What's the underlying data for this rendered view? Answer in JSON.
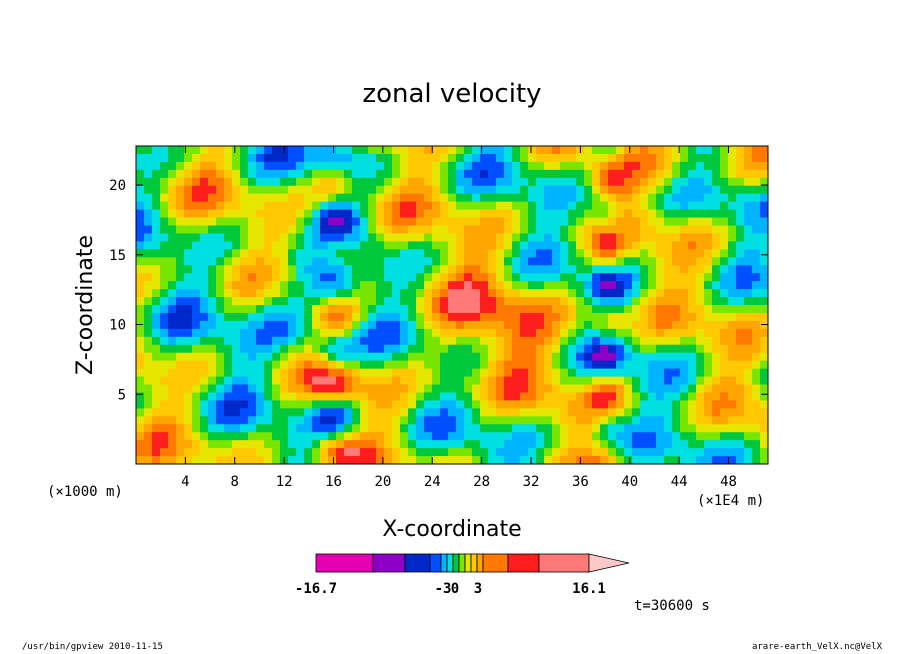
{
  "chart_data": {
    "type": "heatmap",
    "title": "zonal velocity",
    "xlabel": "X-coordinate",
    "ylabel": "Z-coordinate",
    "x_units_label": "(×1000 m)",
    "x_scale_label": "(×1E4 m)",
    "xlim": [
      0.0,
      51.2
    ],
    "ylim": [
      0.0,
      22.8
    ],
    "x_ticks": [
      4,
      8,
      12,
      16,
      20,
      24,
      28,
      32,
      36,
      40,
      44,
      48
    ],
    "y_ticks": [
      5,
      10,
      15,
      20
    ],
    "colorbar": {
      "min": -16.7,
      "max": 16.1,
      "tick_labels": [
        "-16.7",
        "-3",
        "0",
        "3",
        "16.1"
      ],
      "colors": [
        "#e600b4",
        "#8c00c8",
        "#0028c8",
        "#0050ff",
        "#00b4ff",
        "#00e0e0",
        "#00c83c",
        "#78e600",
        "#e6e600",
        "#ffc800",
        "#ffa500",
        "#ff7800",
        "#ff1e1e",
        "#ff7878",
        "#ffc8c8"
      ]
    },
    "annotation": "t=30600 s"
  },
  "footer": {
    "left": "/usr/bin/gpview   2010-11-15",
    "right": "arare-earth_VelX.nc@VelX"
  }
}
